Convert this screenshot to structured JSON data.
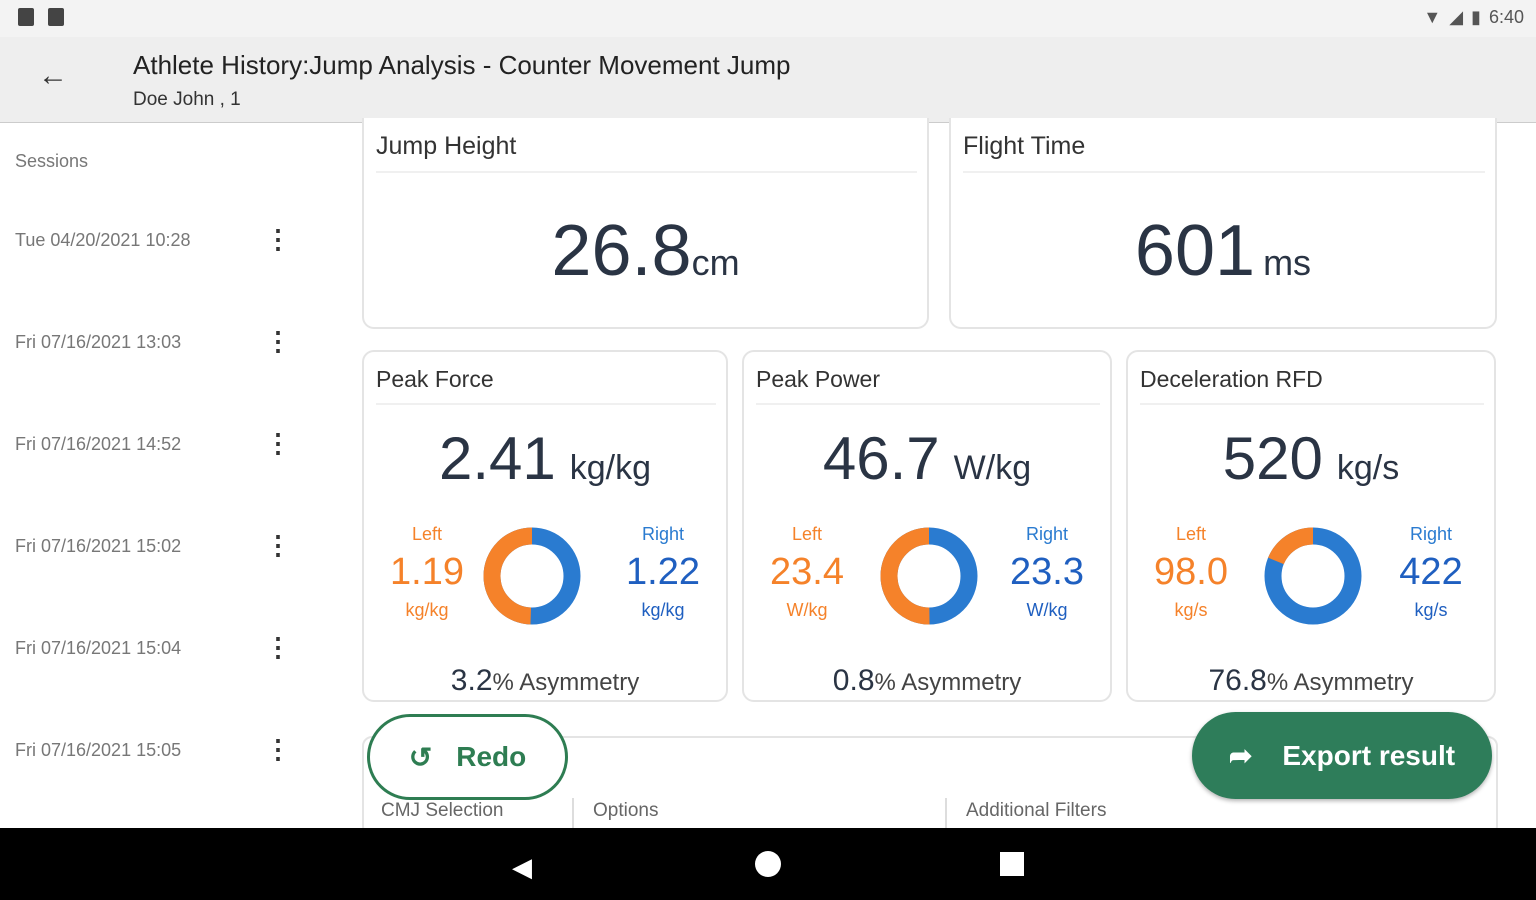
{
  "status_bar": {
    "time": "6:40"
  },
  "header": {
    "title": "Athlete History:Jump Analysis - Counter Movement Jump",
    "subtitle": "Doe John , 1"
  },
  "sidebar": {
    "heading": "Sessions",
    "sessions": [
      "Tue 04/20/2021 10:28",
      "Fri 07/16/2021 13:03",
      "Fri 07/16/2021 14:52",
      "Fri 07/16/2021 15:02",
      "Fri 07/16/2021 15:04",
      "Fri 07/16/2021 15:05"
    ]
  },
  "jump_height": {
    "label": "Jump Height",
    "value": "26.8",
    "unit": "cm"
  },
  "flight_time": {
    "label": "Flight Time",
    "value": "601",
    "unit": "ms"
  },
  "metrics": [
    {
      "label": "Peak Force",
      "value": "2.41",
      "unit": "kg/kg",
      "left_label": "Left",
      "left": "1.19",
      "left_unit": "kg/kg",
      "right_label": "Right",
      "right": "1.22",
      "right_unit": "kg/kg",
      "left_share": 0.494,
      "asymmetry": "3.2",
      "asym_suffix": "% Asymmetry"
    },
    {
      "label": "Peak Power",
      "value": "46.7",
      "unit": "W/kg",
      "left_label": "Left",
      "left": "23.4",
      "left_unit": "W/kg",
      "right_label": "Right",
      "right": "23.3",
      "right_unit": "W/kg",
      "left_share": 0.501,
      "asymmetry": "0.8",
      "asym_suffix": "% Asymmetry"
    },
    {
      "label": "Deceleration RFD",
      "value": "520",
      "unit": "kg/s",
      "left_label": "Left",
      "left": "98.0",
      "left_unit": "kg/s",
      "right_label": "Right",
      "right": "422",
      "right_unit": "kg/s",
      "left_share": 0.188,
      "asymmetry": "76.8",
      "asym_suffix": "% Asymmetry"
    }
  ],
  "colors": {
    "left": "#f5822a",
    "right": "#2a7bd0",
    "accent": "#2e7d5a"
  },
  "actions": {
    "redo": "Redo",
    "export": "Export result"
  },
  "bottom_tabs": [
    "CMJ Selection",
    "Options",
    "Additional Filters"
  ]
}
